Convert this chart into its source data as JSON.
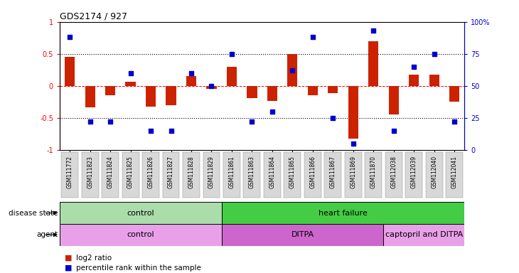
{
  "title": "GDS2174 / 927",
  "samples": [
    "GSM111772",
    "GSM111823",
    "GSM111824",
    "GSM111825",
    "GSM111826",
    "GSM111827",
    "GSM111828",
    "GSM111829",
    "GSM111861",
    "GSM111863",
    "GSM111864",
    "GSM111865",
    "GSM111866",
    "GSM111867",
    "GSM111869",
    "GSM111870",
    "GSM112038",
    "GSM112039",
    "GSM112040",
    "GSM112041"
  ],
  "log2_ratio": [
    0.45,
    -0.33,
    -0.14,
    0.07,
    -0.32,
    -0.3,
    0.15,
    -0.04,
    0.3,
    -0.19,
    -0.23,
    0.5,
    -0.14,
    -0.11,
    -0.82,
    0.7,
    -0.44,
    0.18,
    0.18,
    -0.24
  ],
  "percentile_rank": [
    88,
    22,
    22,
    60,
    15,
    15,
    60,
    50,
    75,
    22,
    30,
    62,
    88,
    25,
    5,
    93,
    15,
    65,
    75,
    22
  ],
  "disease_state_groups": [
    {
      "label": "control",
      "start": 0,
      "end": 8,
      "color": "#aaddaa"
    },
    {
      "label": "heart failure",
      "start": 8,
      "end": 20,
      "color": "#44cc44"
    }
  ],
  "agent_groups": [
    {
      "label": "control",
      "start": 0,
      "end": 8,
      "color": "#e8a0e8"
    },
    {
      "label": "DITPA",
      "start": 8,
      "end": 16,
      "color": "#cc66cc"
    },
    {
      "label": "captopril and DITPA",
      "start": 16,
      "end": 20,
      "color": "#e8a0e8"
    }
  ],
  "bar_color": "#cc2200",
  "dot_color": "#0000cc",
  "bar_width": 0.5
}
